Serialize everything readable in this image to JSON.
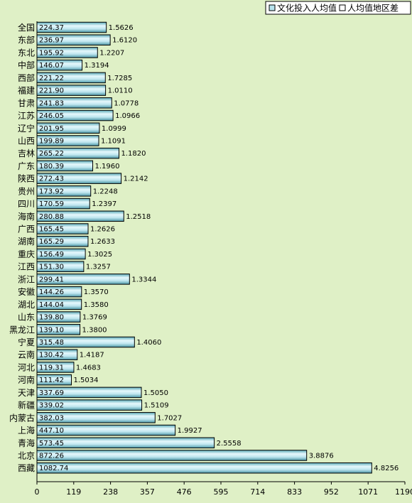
{
  "chart_data": {
    "type": "bar",
    "orientation": "horizontal",
    "title": "",
    "xlabel": "",
    "ylabel": "",
    "xlim": [
      0,
      1190
    ],
    "x_ticks": [
      0,
      119,
      238,
      357,
      476,
      595,
      714,
      833,
      952,
      1071,
      1190
    ],
    "grid": false,
    "legend_placement": "top-right",
    "categories": [
      "全国",
      "东部",
      "东北",
      "中部",
      "西部",
      "福建",
      "甘肃",
      "江苏",
      "辽宁",
      "山西",
      "吉林",
      "广东",
      "陕西",
      "贵州",
      "四川",
      "海南",
      "广西",
      "湖南",
      "重庆",
      "江西",
      "浙江",
      "安徽",
      "湖北",
      "山东",
      "黑龙江",
      "宁夏",
      "云南",
      "河北",
      "河南",
      "天津",
      "新疆",
      "内蒙古",
      "上海",
      "青海",
      "北京",
      "西藏"
    ],
    "series": [
      {
        "name": "文化投入人均值",
        "color": "#b8e4ee",
        "values": [
          224.37,
          236.97,
          195.92,
          146.07,
          221.22,
          221.9,
          241.83,
          246.05,
          201.95,
          199.89,
          265.22,
          180.39,
          272.43,
          173.92,
          170.59,
          280.88,
          165.45,
          165.29,
          156.49,
          151.3,
          299.41,
          144.26,
          144.04,
          139.8,
          139.1,
          315.48,
          130.42,
          119.31,
          111.42,
          337.69,
          339.02,
          382.03,
          447.1,
          573.45,
          872.26,
          1082.74
        ],
        "value_labels": [
          "224.37",
          "236.97",
          "195.92",
          "146.07",
          "221.22",
          "221.90",
          "241.83",
          "246.05",
          "201.95",
          "199.89",
          "265.22",
          "180.39",
          "272.43",
          "173.92",
          "170.59",
          "280.88",
          "165.45",
          "165.29",
          "156.49",
          "151.30",
          "299.41",
          "144.26",
          "144.04",
          "139.80",
          "139.10",
          "315.48",
          "130.42",
          "119.31",
          "111.42",
          "337.69",
          "339.02",
          "382.03",
          "447.10",
          "573.45",
          "872.26",
          "1082.74"
        ]
      },
      {
        "name": "人均值地区差",
        "color": "#ffffff",
        "values": [
          1.5626,
          1.612,
          1.2207,
          1.3194,
          1.7285,
          1.011,
          1.0778,
          1.0966,
          1.0999,
          1.1091,
          1.182,
          1.196,
          1.2142,
          1.2248,
          1.2397,
          1.2518,
          1.2626,
          1.2633,
          1.3025,
          1.3257,
          1.3344,
          1.357,
          1.358,
          1.3769,
          1.38,
          1.406,
          1.4187,
          1.4683,
          1.5034,
          1.505,
          1.5109,
          1.7027,
          1.9927,
          2.5558,
          3.8876,
          4.8256
        ],
        "value_labels": [
          "1.5626",
          "1.6120",
          "1.2207",
          "1.3194",
          "1.7285",
          "1.0110",
          "1.0778",
          "1.0966",
          "1.0999",
          "1.1091",
          "1.1820",
          "1.1960",
          "1.2142",
          "1.2248",
          "1.2397",
          "1.2518",
          "1.2626",
          "1.2633",
          "1.3025",
          "1.3257",
          "1.3344",
          "1.3570",
          "1.3580",
          "1.3769",
          "1.3800",
          "1.4060",
          "1.4187",
          "1.4683",
          "1.5034",
          "1.5050",
          "1.5109",
          "1.7027",
          "1.9927",
          "2.5558",
          "3.8876",
          "4.8256"
        ]
      }
    ]
  }
}
